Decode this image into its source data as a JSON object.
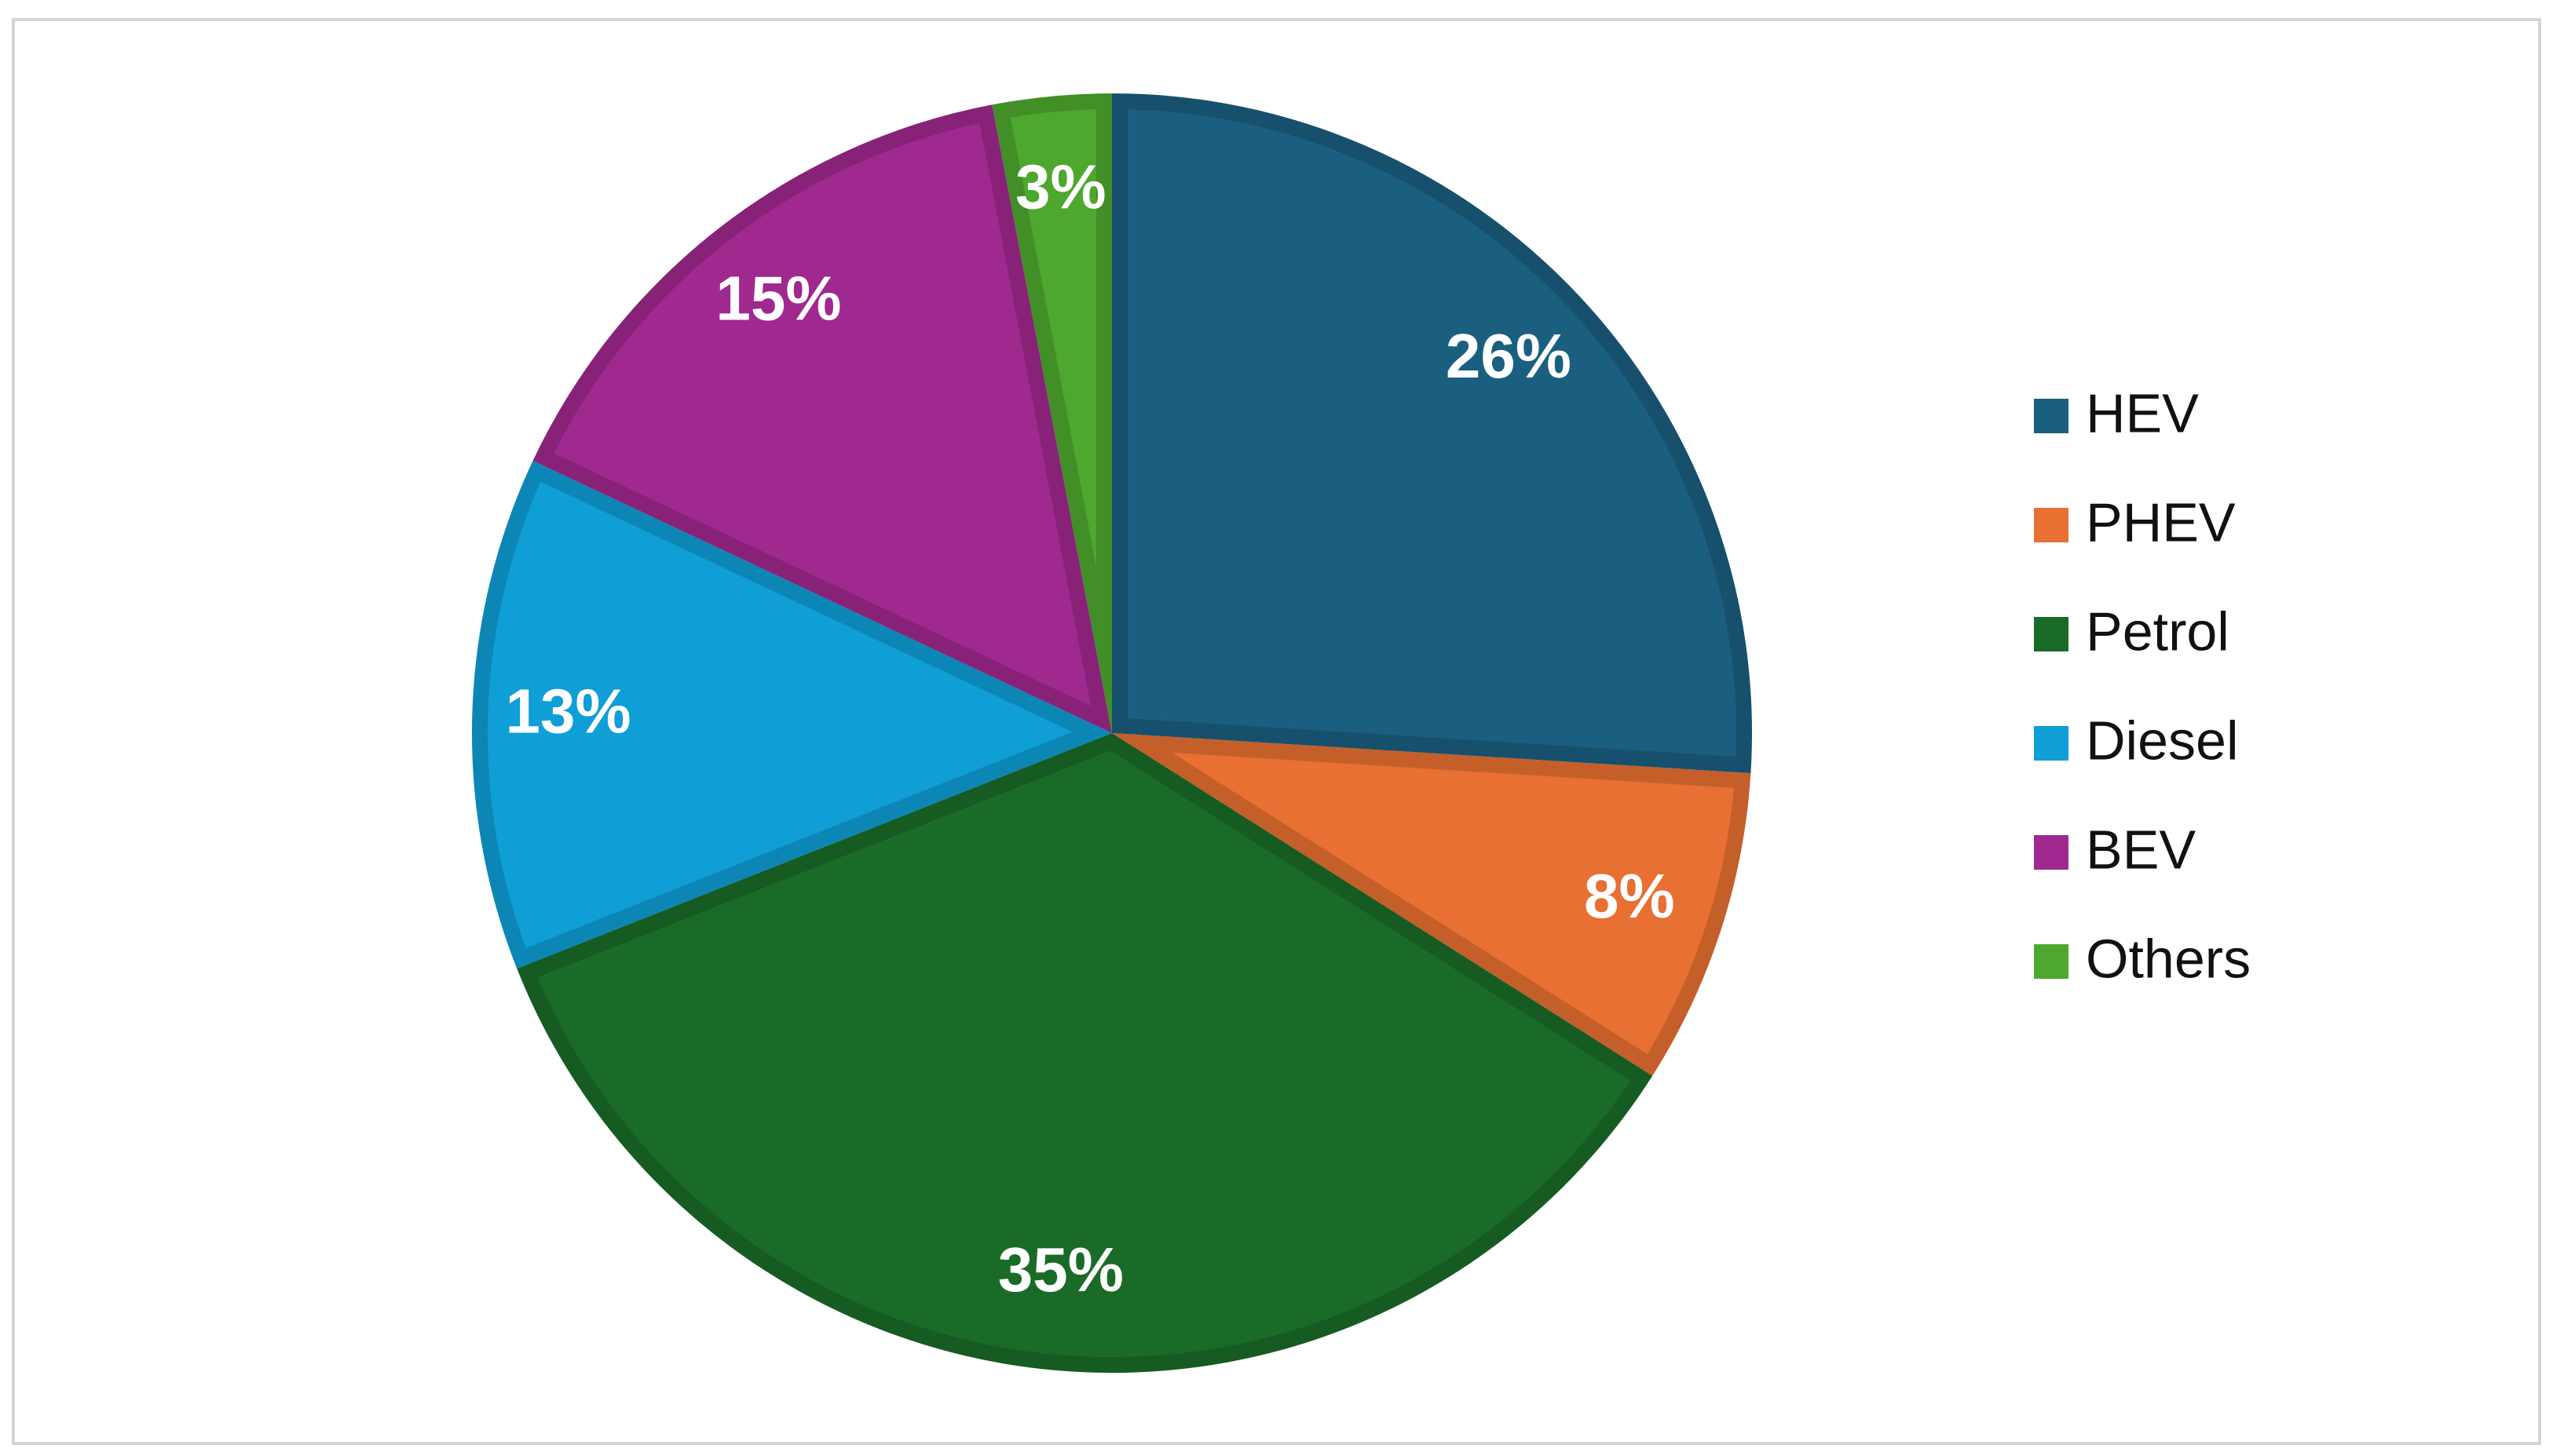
{
  "chart_data": {
    "type": "pie",
    "categories": [
      "HEV",
      "PHEV",
      "Petrol",
      "Diesel",
      "BEV",
      "Others"
    ],
    "values": [
      26,
      8,
      35,
      13,
      15,
      3
    ],
    "value_labels": [
      "26%",
      "8%",
      "35%",
      "13%",
      "15%",
      "3%"
    ],
    "colors": [
      "#1a5f80",
      "#e77032",
      "#1b6b28",
      "#0f9ed5",
      "#a0298f",
      "#4ea72e"
    ],
    "legend": "right"
  }
}
